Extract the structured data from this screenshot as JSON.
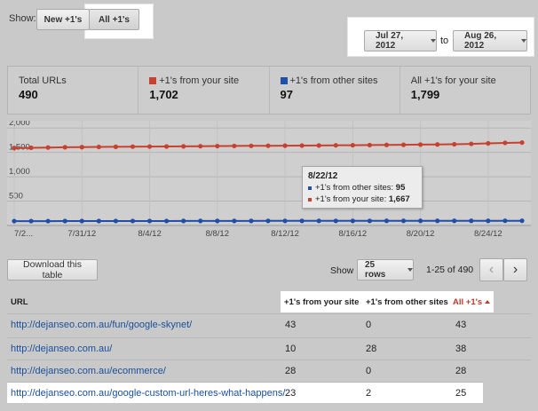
{
  "filter": {
    "show_label": "Show:",
    "new_label": "New +1's",
    "all_label": "All +1's"
  },
  "date_range": {
    "from": "Jul 27, 2012",
    "to_label": "to",
    "to": "Aug 26, 2012"
  },
  "summary": {
    "total_urls": {
      "label": "Total URLs",
      "value": "490"
    },
    "from_your_site": {
      "label": "+1's from your site",
      "value": "1,702"
    },
    "from_other_sites": {
      "label": "+1's from other sites",
      "value": "97"
    },
    "all_for_site": {
      "label": "All +1's for your site",
      "value": "1,799"
    }
  },
  "colors": {
    "your_site": "#c8412f",
    "other_sites": "#1f4fa8",
    "active_sort": "#c0392b",
    "link": "#1a4f9c"
  },
  "chart_data": {
    "type": "line",
    "x": [
      "7/27/12",
      "7/28/12",
      "7/29/12",
      "7/30/12",
      "7/31/12",
      "8/1/12",
      "8/2/12",
      "8/3/12",
      "8/4/12",
      "8/5/12",
      "8/6/12",
      "8/7/12",
      "8/8/12",
      "8/9/12",
      "8/10/12",
      "8/11/12",
      "8/12/12",
      "8/13/12",
      "8/14/12",
      "8/15/12",
      "8/16/12",
      "8/17/12",
      "8/18/12",
      "8/19/12",
      "8/20/12",
      "8/21/12",
      "8/22/12",
      "8/23/12",
      "8/24/12",
      "8/25/12",
      "8/26/12"
    ],
    "tick_labels": [
      "7/2...",
      "7/31/12",
      "8/4/12",
      "8/8/12",
      "8/12/12",
      "8/16/12",
      "8/20/12",
      "8/24/12"
    ],
    "tick_indices": [
      0,
      4,
      8,
      12,
      16,
      20,
      24,
      28
    ],
    "y_ticks": [
      "2,000",
      "1,500",
      "1,000",
      "500"
    ],
    "y_tick_values": [
      2000,
      1500,
      1000,
      500
    ],
    "ylim": [
      0,
      2150
    ],
    "series": [
      {
        "name": "+1's from your site",
        "color": "#c8412f",
        "values": [
          1590,
          1595,
          1600,
          1605,
          1608,
          1612,
          1615,
          1618,
          1620,
          1622,
          1624,
          1627,
          1630,
          1632,
          1634,
          1636,
          1638,
          1640,
          1642,
          1645,
          1648,
          1650,
          1653,
          1656,
          1660,
          1663,
          1667,
          1675,
          1685,
          1695,
          1702
        ]
      },
      {
        "name": "+1's from other sites",
        "color": "#1f4fa8",
        "values": [
          90,
          90,
          90,
          91,
          91,
          91,
          92,
          92,
          92,
          92,
          93,
          93,
          93,
          93,
          93,
          94,
          94,
          94,
          94,
          94,
          94,
          94,
          95,
          95,
          95,
          95,
          95,
          96,
          96,
          97,
          97
        ]
      }
    ],
    "grid": true,
    "legend": "none"
  },
  "tooltip": {
    "date": "8/22/12",
    "other_label": "+1's from other sites:",
    "other_value": "95",
    "your_label": "+1's from your site:",
    "your_value": "1,667"
  },
  "table_controls": {
    "download_label": "Download this table",
    "show_label": "Show",
    "rows_value": "25 rows",
    "range": "1-25 of 490",
    "prev": "‹",
    "next": "›"
  },
  "table": {
    "headers": {
      "url": "URL",
      "from_your_site": "+1's from your site",
      "from_other_sites": "+1's from other sites",
      "all": "All +1's"
    },
    "rows": [
      {
        "url": "http://dejanseo.com.au/fun/google-skynet/",
        "your": "43",
        "other": "0",
        "all": "43"
      },
      {
        "url": "http://dejanseo.com.au/",
        "your": "10",
        "other": "28",
        "all": "38"
      },
      {
        "url": "http://dejanseo.com.au/ecommerce/",
        "your": "28",
        "other": "0",
        "all": "28"
      },
      {
        "url": "http://dejanseo.com.au/google-custom-url-heres-what-happens/",
        "your": "23",
        "other": "2",
        "all": "25"
      }
    ]
  }
}
